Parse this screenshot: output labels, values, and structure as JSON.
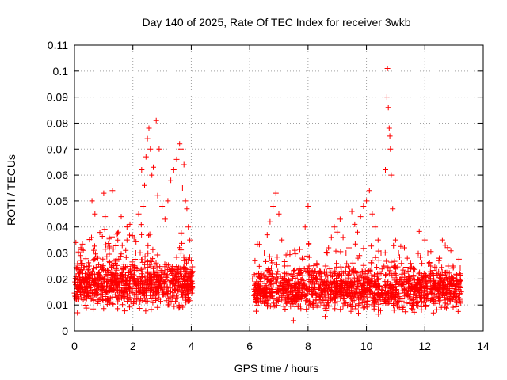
{
  "chart_data": {
    "type": "scatter",
    "title": "Day 140 of 2025, Rate Of TEC Index for receiver 3wkb",
    "xlabel": "GPS time / hours",
    "ylabel": "ROTI / TECUs",
    "xlim": [
      0,
      14
    ],
    "ylim": [
      0,
      0.11
    ],
    "xticks": [
      0,
      2,
      4,
      6,
      8,
      10,
      12,
      14
    ],
    "yticks": [
      0,
      0.01,
      0.02,
      0.03,
      0.04,
      0.05,
      0.06,
      0.07,
      0.08,
      0.09,
      0.1,
      0.11
    ],
    "ytick_labels": [
      "0",
      "0.01",
      "0.02",
      "0.03",
      "0.04",
      "0.05",
      "0.06",
      "0.07",
      "0.08",
      "0.09",
      "0.1",
      "0.11"
    ],
    "grid": true,
    "marker": "+",
    "color": "#ff0000",
    "data_gap_hours": [
      4.05,
      6.15
    ],
    "series": [
      {
        "name": "ROTI",
        "points": [
          [
            0.05,
            0.034
          ],
          [
            0.1,
            0.007
          ],
          [
            0.15,
            0.022
          ],
          [
            0.2,
            0.029
          ],
          [
            0.3,
            0.031
          ],
          [
            0.4,
            0.018
          ],
          [
            0.5,
            0.025
          ],
          [
            0.6,
            0.05
          ],
          [
            0.65,
            0.012
          ],
          [
            0.7,
            0.045
          ],
          [
            0.8,
            0.028
          ],
          [
            0.9,
            0.02
          ],
          [
            1.0,
            0.053
          ],
          [
            1.05,
            0.044
          ],
          [
            1.1,
            0.015
          ],
          [
            1.2,
            0.032
          ],
          [
            1.3,
            0.054
          ],
          [
            1.4,
            0.022
          ],
          [
            1.5,
            0.038
          ],
          [
            1.6,
            0.044
          ],
          [
            1.7,
            0.018
          ],
          [
            1.8,
            0.035
          ],
          [
            1.9,
            0.041
          ],
          [
            2.0,
            0.025
          ],
          [
            2.1,
            0.03
          ],
          [
            2.2,
            0.045
          ],
          [
            2.3,
            0.062
          ],
          [
            2.35,
            0.048
          ],
          [
            2.4,
            0.056
          ],
          [
            2.45,
            0.067
          ],
          [
            2.5,
            0.074
          ],
          [
            2.55,
            0.078
          ],
          [
            2.6,
            0.07
          ],
          [
            2.65,
            0.06
          ],
          [
            2.7,
            0.063
          ],
          [
            2.8,
            0.081
          ],
          [
            2.85,
            0.052
          ],
          [
            2.9,
            0.07
          ],
          [
            3.0,
            0.048
          ],
          [
            3.1,
            0.043
          ],
          [
            3.2,
            0.05
          ],
          [
            3.3,
            0.058
          ],
          [
            3.4,
            0.062
          ],
          [
            3.5,
            0.066
          ],
          [
            3.6,
            0.072
          ],
          [
            3.65,
            0.07
          ],
          [
            3.7,
            0.055
          ],
          [
            3.75,
            0.064
          ],
          [
            3.8,
            0.05
          ],
          [
            3.85,
            0.047
          ],
          [
            3.9,
            0.04
          ],
          [
            3.95,
            0.035
          ],
          [
            4.0,
            0.027
          ],
          [
            0.1,
            0.015
          ],
          [
            0.3,
            0.012
          ],
          [
            0.5,
            0.018
          ],
          [
            0.7,
            0.016
          ],
          [
            0.9,
            0.014
          ],
          [
            1.1,
            0.017
          ],
          [
            1.3,
            0.013
          ],
          [
            1.5,
            0.019
          ],
          [
            1.7,
            0.015
          ],
          [
            1.9,
            0.02
          ],
          [
            2.1,
            0.018
          ],
          [
            2.3,
            0.022
          ],
          [
            2.5,
            0.02
          ],
          [
            2.7,
            0.024
          ],
          [
            2.9,
            0.021
          ],
          [
            3.1,
            0.019
          ],
          [
            3.3,
            0.023
          ],
          [
            3.5,
            0.02
          ],
          [
            3.7,
            0.018
          ],
          [
            3.9,
            0.016
          ],
          [
            6.1,
            0.02
          ],
          [
            6.2,
            0.018
          ],
          [
            6.3,
            0.016
          ],
          [
            6.4,
            0.022
          ],
          [
            6.5,
            0.03
          ],
          [
            6.6,
            0.037
          ],
          [
            6.7,
            0.042
          ],
          [
            6.8,
            0.048
          ],
          [
            6.9,
            0.053
          ],
          [
            7.0,
            0.045
          ],
          [
            7.1,
            0.035
          ],
          [
            7.2,
            0.025
          ],
          [
            7.3,
            0.03
          ],
          [
            7.4,
            0.012
          ],
          [
            7.5,
            0.004
          ],
          [
            7.6,
            0.018
          ],
          [
            7.7,
            0.024
          ],
          [
            7.8,
            0.028
          ],
          [
            7.9,
            0.04
          ],
          [
            8.0,
            0.048
          ],
          [
            8.1,
            0.03
          ],
          [
            8.2,
            0.02
          ],
          [
            8.3,
            0.026
          ],
          [
            8.4,
            0.022
          ],
          [
            8.5,
            0.018
          ],
          [
            8.6,
            0.025
          ],
          [
            8.7,
            0.032
          ],
          [
            8.8,
            0.036
          ],
          [
            8.9,
            0.04
          ],
          [
            9.0,
            0.038
          ],
          [
            9.1,
            0.043
          ],
          [
            9.2,
            0.036
          ],
          [
            9.3,
            0.03
          ],
          [
            9.4,
            0.032
          ],
          [
            9.5,
            0.046
          ],
          [
            9.6,
            0.041
          ],
          [
            9.7,
            0.038
          ],
          [
            9.8,
            0.044
          ],
          [
            9.9,
            0.048
          ],
          [
            10.0,
            0.05
          ],
          [
            10.1,
            0.054
          ],
          [
            10.2,
            0.045
          ],
          [
            10.3,
            0.04
          ],
          [
            10.4,
            0.035
          ],
          [
            10.5,
            0.03
          ],
          [
            10.6,
            0.025
          ],
          [
            10.65,
            0.062
          ],
          [
            10.7,
            0.09
          ],
          [
            10.72,
            0.101
          ],
          [
            10.75,
            0.086
          ],
          [
            10.78,
            0.078
          ],
          [
            10.8,
            0.075
          ],
          [
            10.82,
            0.07
          ],
          [
            10.85,
            0.06
          ],
          [
            10.9,
            0.047
          ],
          [
            11.0,
            0.035
          ],
          [
            11.1,
            0.03
          ],
          [
            11.2,
            0.026
          ],
          [
            11.3,
            0.032
          ],
          [
            11.4,
            0.028
          ],
          [
            11.5,
            0.02
          ],
          [
            11.6,
            0.024
          ],
          [
            11.7,
            0.017
          ],
          [
            11.8,
            0.022
          ],
          [
            11.9,
            0.026
          ],
          [
            12.0,
            0.035
          ],
          [
            12.1,
            0.03
          ],
          [
            12.2,
            0.025
          ],
          [
            12.3,
            0.02
          ],
          [
            12.4,
            0.022
          ],
          [
            12.5,
            0.028
          ],
          [
            12.6,
            0.035
          ],
          [
            12.7,
            0.033
          ],
          [
            12.8,
            0.025
          ],
          [
            12.9,
            0.02
          ],
          [
            13.0,
            0.018
          ],
          [
            13.1,
            0.016
          ],
          [
            13.2,
            0.022
          ],
          [
            6.2,
            0.012
          ],
          [
            6.5,
            0.014
          ],
          [
            6.8,
            0.016
          ],
          [
            7.1,
            0.013
          ],
          [
            7.4,
            0.015
          ],
          [
            7.7,
            0.012
          ],
          [
            8.0,
            0.016
          ],
          [
            8.3,
            0.014
          ],
          [
            8.6,
            0.013
          ],
          [
            8.9,
            0.017
          ],
          [
            9.2,
            0.015
          ],
          [
            9.5,
            0.014
          ],
          [
            9.8,
            0.018
          ],
          [
            10.1,
            0.016
          ],
          [
            10.4,
            0.014
          ],
          [
            10.7,
            0.015
          ],
          [
            11.0,
            0.013
          ],
          [
            11.3,
            0.016
          ],
          [
            11.6,
            0.012
          ],
          [
            11.9,
            0.014
          ],
          [
            12.2,
            0.015
          ],
          [
            12.5,
            0.013
          ],
          [
            12.8,
            0.012
          ],
          [
            13.1,
            0.011
          ]
        ]
      }
    ],
    "density_bands": [
      {
        "x": [
          0.0,
          4.05
        ],
        "center": 0.018,
        "spread": 0.008,
        "count": 900
      },
      {
        "x": [
          6.15,
          13.25
        ],
        "center": 0.016,
        "spread": 0.007,
        "count": 1400
      }
    ]
  }
}
